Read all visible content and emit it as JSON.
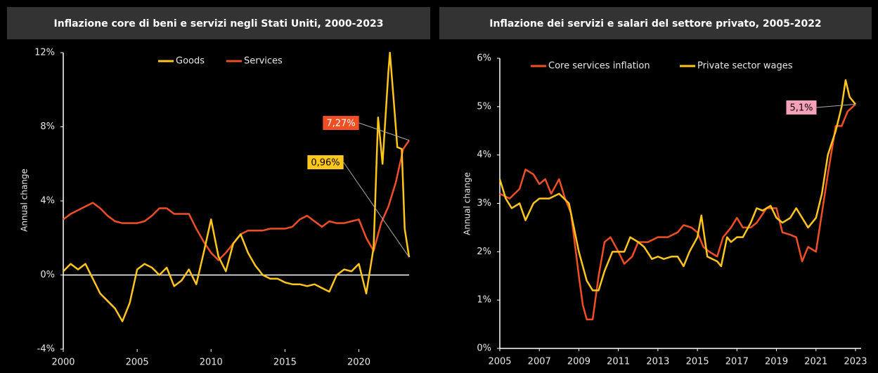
{
  "chart_data": [
    {
      "type": "line",
      "title": "Inflazione core di beni e servizi negli Stati Uniti, 2000-2023",
      "y_label": "Annual change",
      "xlim": [
        2000,
        2023.4
      ],
      "xticks": [
        2000,
        2005,
        2010,
        2015,
        2020
      ],
      "ylim": [
        -4,
        12
      ],
      "yticks": [
        {
          "value": -4,
          "label": "-4%"
        },
        {
          "value": 0,
          "label": "0%"
        },
        {
          "value": 4,
          "label": "4%"
        },
        {
          "value": 8,
          "label": "8%"
        },
        {
          "value": 12,
          "label": "12%"
        }
      ],
      "zero_line": true,
      "series": [
        {
          "name": "Services",
          "color": "#f04e23",
          "x": [
            2000,
            2000.5,
            2001,
            2001.5,
            2002,
            2002.5,
            2003,
            2003.5,
            2004,
            2004.5,
            2005,
            2005.5,
            2006,
            2006.5,
            2007,
            2007.5,
            2008,
            2008.5,
            2009,
            2009.5,
            2010,
            2010.5,
            2011,
            2011.5,
            2012,
            2012.5,
            2013,
            2013.5,
            2014,
            2014.5,
            2015,
            2015.5,
            2016,
            2016.5,
            2017,
            2017.5,
            2018,
            2018.5,
            2019,
            2019.5,
            2020,
            2020.5,
            2021,
            2021.5,
            2022,
            2022.5,
            2023,
            2023.4
          ],
          "values": [
            3.0,
            3.3,
            3.5,
            3.7,
            3.9,
            3.6,
            3.2,
            2.9,
            2.8,
            2.8,
            2.8,
            2.9,
            3.2,
            3.6,
            3.6,
            3.3,
            3.3,
            3.3,
            2.5,
            1.8,
            1.2,
            0.8,
            1.2,
            1.7,
            2.2,
            2.4,
            2.4,
            2.4,
            2.5,
            2.5,
            2.5,
            2.6,
            3.0,
            3.2,
            2.9,
            2.6,
            2.9,
            2.8,
            2.8,
            2.9,
            3.0,
            2.0,
            1.3,
            2.8,
            3.7,
            5.0,
            6.8,
            7.27
          ]
        },
        {
          "name": "Goods",
          "color": "#ffc61c",
          "x": [
            2000,
            2000.5,
            2001,
            2001.5,
            2002,
            2002.5,
            2003,
            2003.5,
            2004,
            2004.5,
            2005,
            2005.5,
            2006,
            2006.5,
            2007,
            2007.5,
            2008,
            2008.5,
            2009,
            2009.5,
            2010,
            2010.5,
            2011,
            2011.5,
            2012,
            2012.5,
            2013,
            2013.5,
            2014,
            2014.5,
            2015,
            2015.5,
            2016,
            2016.5,
            2017,
            2017.5,
            2018,
            2018.5,
            2019,
            2019.5,
            2020,
            2020.5,
            2021,
            2021.3,
            2021.6,
            2022,
            2022.1,
            2022.4,
            2022.6,
            2022.9,
            2023.1,
            2023.4
          ],
          "values": [
            0.2,
            0.6,
            0.3,
            0.6,
            -0.2,
            -1.0,
            -1.4,
            -1.8,
            -2.5,
            -1.5,
            0.3,
            0.6,
            0.4,
            0.0,
            0.4,
            -0.6,
            -0.3,
            0.3,
            -0.5,
            1.2,
            3.0,
            1.0,
            0.2,
            1.7,
            2.2,
            1.2,
            0.5,
            0.0,
            -0.2,
            -0.2,
            -0.4,
            -0.5,
            -0.5,
            -0.6,
            -0.5,
            -0.7,
            -0.9,
            0.0,
            0.3,
            0.2,
            0.6,
            -1.0,
            1.5,
            8.5,
            6.0,
            11.0,
            12.0,
            9.0,
            6.9,
            6.8,
            2.5,
            0.96
          ]
        }
      ],
      "legend_order": [
        "Goods",
        "Services"
      ],
      "annotations": [
        {
          "text": "7,27%",
          "color": "#f04e23"
        },
        {
          "text": "0,96%",
          "color": "#ffc61c"
        }
      ]
    },
    {
      "type": "line",
      "title": "Inflazione dei servizi e salari del settore privato, 2005-2022",
      "y_label": "Annual change",
      "xlim": [
        2005,
        2023
      ],
      "xticks": [
        2005,
        2007,
        2009,
        2011,
        2013,
        2015,
        2017,
        2019,
        2021,
        2023
      ],
      "ylim": [
        0,
        6
      ],
      "yticks": [
        {
          "value": 0,
          "label": "0%"
        },
        {
          "value": 1,
          "label": "1%"
        },
        {
          "value": 2,
          "label": "2%"
        },
        {
          "value": 3,
          "label": "3%"
        },
        {
          "value": 4,
          "label": "4%"
        },
        {
          "value": 5,
          "label": "5%"
        },
        {
          "value": 6,
          "label": "6%"
        }
      ],
      "zero_line": false,
      "series": [
        {
          "name": "Core services inflation",
          "color": "#f04e23",
          "x": [
            2005,
            2005.5,
            2006,
            2006.3,
            2006.7,
            2007,
            2007.3,
            2007.6,
            2008,
            2008.3,
            2008.6,
            2009,
            2009.2,
            2009.4,
            2009.7,
            2010,
            2010.3,
            2010.6,
            2011,
            2011.3,
            2011.7,
            2012,
            2012.5,
            2013,
            2013.5,
            2014,
            2014.3,
            2014.7,
            2015,
            2015.3,
            2015.6,
            2016,
            2016.3,
            2016.7,
            2017,
            2017.3,
            2017.7,
            2018,
            2018.5,
            2019,
            2019.3,
            2019.7,
            2020,
            2020.3,
            2020.6,
            2021,
            2021.3,
            2021.6,
            2022,
            2022.3,
            2022.6,
            2023
          ],
          "values": [
            3.2,
            3.1,
            3.3,
            3.7,
            3.6,
            3.4,
            3.5,
            3.2,
            3.5,
            3.1,
            2.8,
            1.5,
            0.9,
            0.6,
            0.6,
            1.5,
            2.2,
            2.3,
            2.0,
            1.75,
            1.9,
            2.2,
            2.2,
            2.3,
            2.3,
            2.4,
            2.55,
            2.5,
            2.4,
            2.1,
            2.0,
            1.9,
            2.3,
            2.5,
            2.7,
            2.5,
            2.5,
            2.6,
            2.9,
            2.9,
            2.4,
            2.35,
            2.3,
            1.8,
            2.1,
            2.0,
            2.8,
            3.6,
            4.6,
            4.6,
            4.9,
            5.05
          ]
        },
        {
          "name": "Private sector wages",
          "color": "#ffc61c",
          "x": [
            2005,
            2005.3,
            2005.6,
            2006,
            2006.3,
            2006.7,
            2007,
            2007.5,
            2008,
            2008.5,
            2009,
            2009.4,
            2009.7,
            2010,
            2010.3,
            2010.7,
            2011,
            2011.3,
            2011.6,
            2012,
            2012.3,
            2012.7,
            2013,
            2013.3,
            2013.7,
            2014,
            2014.3,
            2014.6,
            2015,
            2015.2,
            2015.5,
            2016,
            2016.2,
            2016.5,
            2016.7,
            2017,
            2017.3,
            2017.7,
            2018,
            2018.3,
            2018.7,
            2019,
            2019.3,
            2019.7,
            2020,
            2020.3,
            2020.6,
            2021,
            2021.3,
            2021.6,
            2022,
            2022.3,
            2022.5,
            2022.7,
            2023
          ],
          "values": [
            3.5,
            3.1,
            2.9,
            3.0,
            2.65,
            3.0,
            3.1,
            3.1,
            3.2,
            3.0,
            2.0,
            1.4,
            1.2,
            1.2,
            1.6,
            2.0,
            2.0,
            2.0,
            2.3,
            2.2,
            2.1,
            1.85,
            1.9,
            1.85,
            1.9,
            1.9,
            1.7,
            2.0,
            2.3,
            2.75,
            1.9,
            1.8,
            1.7,
            2.3,
            2.2,
            2.3,
            2.3,
            2.6,
            2.9,
            2.85,
            2.95,
            2.7,
            2.6,
            2.7,
            2.9,
            2.7,
            2.5,
            2.7,
            3.2,
            4.0,
            4.5,
            5.0,
            5.55,
            5.2,
            5.05
          ]
        }
      ],
      "legend_order": [
        "Core services inflation",
        "Private sector wages"
      ],
      "annotations": [
        {
          "text": "5,1%",
          "color": "#f7a1b9"
        }
      ]
    }
  ]
}
